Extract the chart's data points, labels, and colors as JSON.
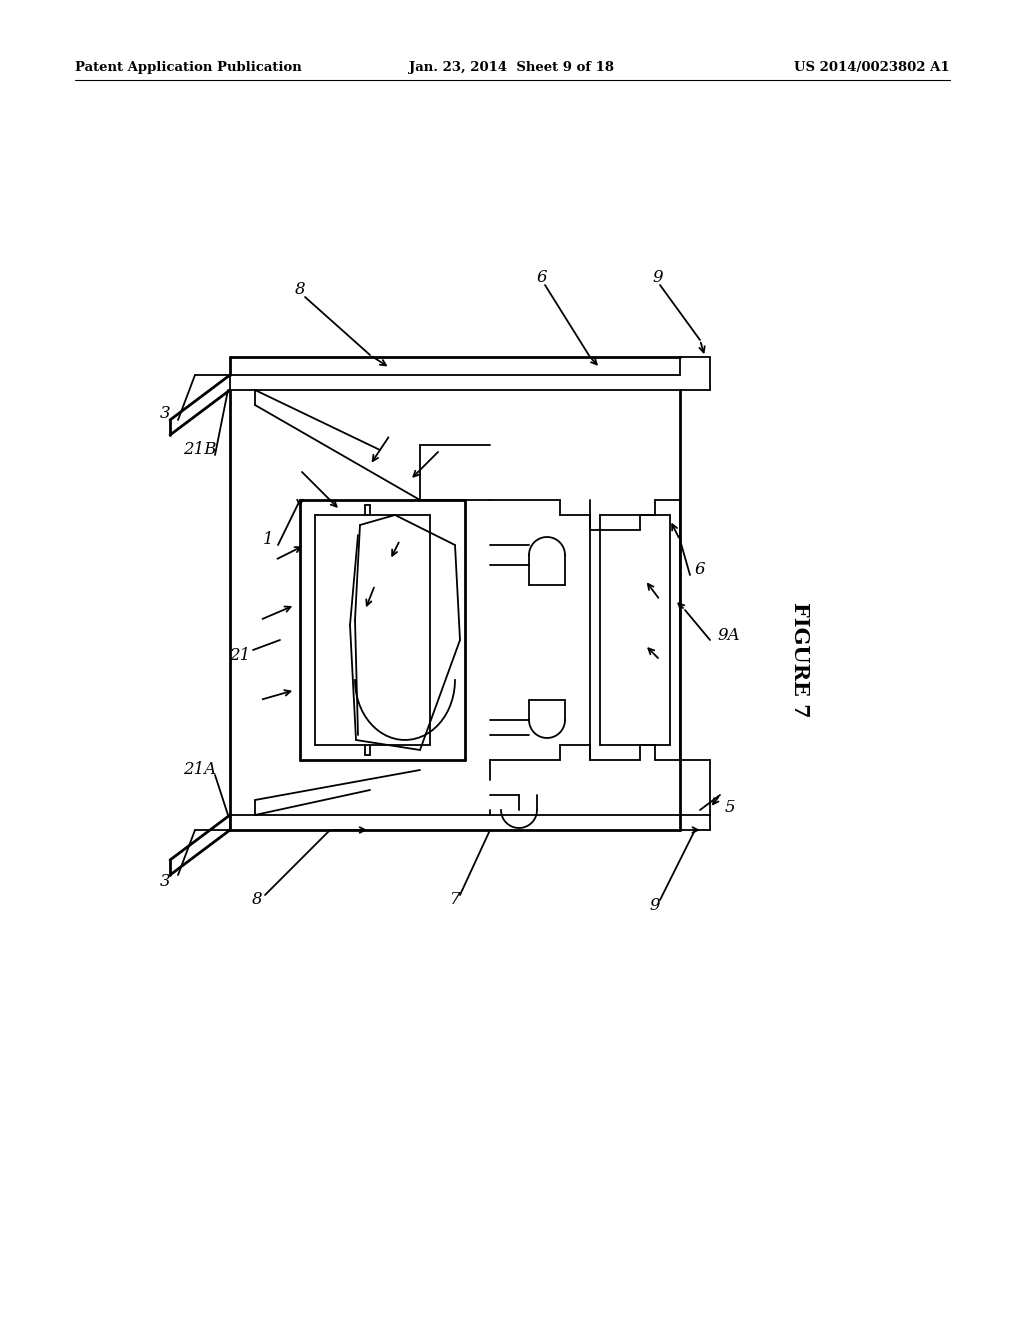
{
  "bg_color": "#ffffff",
  "line_color": "#000000",
  "header_left": "Patent Application Publication",
  "header_center": "Jan. 23, 2014  Sheet 9 of 18",
  "header_right": "US 2014/0023802 A1",
  "figure_label": "FIGURE 7"
}
